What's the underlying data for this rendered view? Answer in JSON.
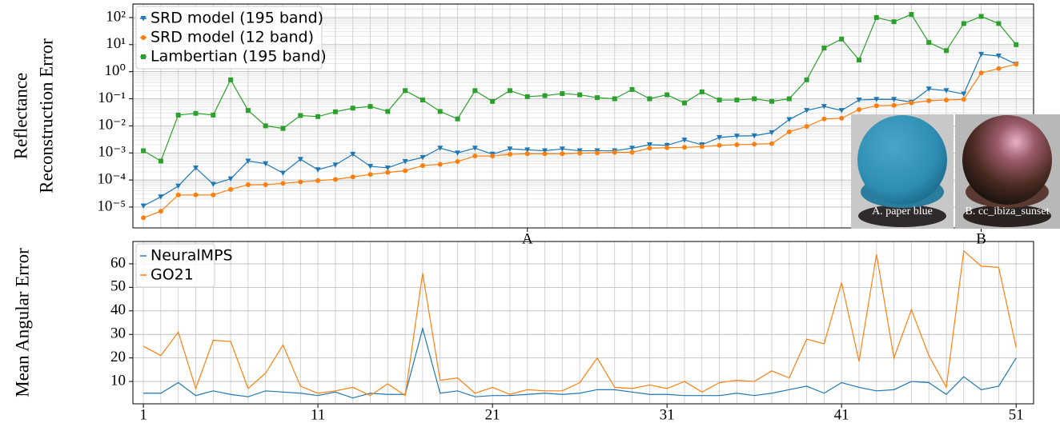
{
  "chart_data": [
    {
      "type": "line",
      "log_y": true,
      "ylabel": [
        "Reflectance",
        "Reconstruction Error"
      ],
      "x": [
        1,
        2,
        3,
        4,
        5,
        6,
        7,
        8,
        9,
        10,
        11,
        12,
        13,
        14,
        15,
        16,
        17,
        18,
        19,
        20,
        21,
        22,
        23,
        24,
        25,
        26,
        27,
        28,
        29,
        30,
        31,
        32,
        33,
        34,
        35,
        36,
        37,
        38,
        39,
        40,
        41,
        42,
        43,
        44,
        45,
        46,
        47,
        48,
        49,
        50,
        51
      ],
      "series": [
        {
          "name": "SRD model (195 band)",
          "color": "#1f77b4",
          "marker": "v",
          "values": [
            1.1e-05,
            2.4e-05,
            6e-05,
            0.00028,
            7e-05,
            0.00011,
            0.0005,
            0.0004,
            0.00018,
            0.00058,
            0.00024,
            0.00036,
            0.00089,
            0.00032,
            0.00028,
            0.00048,
            0.00068,
            0.0015,
            0.001,
            0.0015,
            0.0009,
            0.0014,
            0.0013,
            0.0012,
            0.0014,
            0.0012,
            0.0012,
            0.0012,
            0.0015,
            0.002,
            0.0019,
            0.003,
            0.002,
            0.0037,
            0.0042,
            0.0043,
            0.0056,
            0.017,
            0.037,
            0.052,
            0.037,
            0.09,
            0.095,
            0.095,
            0.075,
            0.23,
            0.2,
            0.15,
            4.4,
            3.8,
            1.9
          ]
        },
        {
          "name": "SRD model (12 band)",
          "color": "#ff7f0e",
          "marker": "o",
          "values": [
            4e-06,
            7e-06,
            2.8e-05,
            2.8e-05,
            2.8e-05,
            4.5e-05,
            6.7e-05,
            6.7e-05,
            7.5e-05,
            8.5e-05,
            9.5e-05,
            0.000105,
            0.00013,
            0.00016,
            0.00019,
            0.00022,
            0.00034,
            0.00038,
            0.00048,
            0.00077,
            0.00077,
            0.00089,
            0.00093,
            0.00093,
            0.00093,
            0.00098,
            0.001,
            0.00105,
            0.00105,
            0.0015,
            0.00155,
            0.0016,
            0.0017,
            0.0019,
            0.002,
            0.0021,
            0.0022,
            0.006,
            0.0095,
            0.018,
            0.019,
            0.04,
            0.055,
            0.057,
            0.07,
            0.085,
            0.09,
            0.095,
            0.9,
            1.3,
            1.9
          ]
        },
        {
          "name": "Lambertian (195 band)",
          "color": "#2ca02c",
          "marker": "s",
          "values": [
            0.0012,
            0.0005,
            0.025,
            0.029,
            0.025,
            0.5,
            0.037,
            0.01,
            0.008,
            0.024,
            0.022,
            0.033,
            0.045,
            0.052,
            0.034,
            0.2,
            0.09,
            0.034,
            0.018,
            0.2,
            0.08,
            0.2,
            0.12,
            0.13,
            0.155,
            0.14,
            0.11,
            0.1,
            0.22,
            0.1,
            0.14,
            0.07,
            0.18,
            0.09,
            0.09,
            0.1,
            0.08,
            0.1,
            0.5,
            7.5,
            16,
            2.7,
            100,
            70,
            130,
            12,
            6,
            60,
            110,
            60,
            10
          ]
        }
      ],
      "xlim": [
        0.4,
        52
      ],
      "xticks": [
        {
          "value": 23,
          "label": "A"
        },
        {
          "value": 49,
          "label": "B"
        }
      ],
      "ylim": [
        1.7e-06,
        316
      ],
      "yticks": [
        {
          "value": 1e-05,
          "label": "10⁻⁵"
        },
        {
          "value": 0.0001,
          "label": "10⁻⁴"
        },
        {
          "value": 0.001,
          "label": "10⁻³"
        },
        {
          "value": 0.01,
          "label": "10⁻²"
        },
        {
          "value": 0.1,
          "label": "10⁻¹"
        },
        {
          "value": 1,
          "label": "10⁰"
        },
        {
          "value": 10,
          "label": "10¹"
        },
        {
          "value": 100,
          "label": "10²"
        }
      ],
      "grid": true,
      "legend": "upper left",
      "annotations": [
        "A. paper blue",
        "B. cc_ibiza_sunset"
      ]
    },
    {
      "type": "line",
      "ylabel": [
        "Mean Angular Error"
      ],
      "x": [
        1,
        2,
        3,
        4,
        5,
        6,
        7,
        8,
        9,
        10,
        11,
        12,
        13,
        14,
        15,
        16,
        17,
        18,
        19,
        20,
        21,
        22,
        23,
        24,
        25,
        26,
        27,
        28,
        29,
        30,
        31,
        32,
        33,
        34,
        35,
        36,
        37,
        38,
        39,
        40,
        41,
        42,
        43,
        44,
        45,
        46,
        47,
        48,
        49,
        50,
        51
      ],
      "series": [
        {
          "name": "NeuralMPS",
          "color": "#1f77b4",
          "values": [
            5,
            5,
            9.5,
            4,
            6,
            4.5,
            3.5,
            6,
            5.5,
            5,
            4,
            5.5,
            3,
            5,
            4.5,
            4.5,
            32.5,
            5,
            6,
            3.5,
            4,
            4,
            4.5,
            5,
            4.5,
            5,
            6.5,
            6.5,
            5.5,
            4.5,
            4.5,
            4,
            4,
            4,
            5,
            4,
            5,
            6.5,
            8,
            5,
            9.5,
            7.5,
            6,
            6.5,
            10,
            9.5,
            4.5,
            12,
            6.5,
            8,
            20
          ]
        },
        {
          "name": "GO21",
          "color": "#ff7f0e",
          "values": [
            25,
            21,
            31,
            7,
            27.5,
            27,
            7,
            13.5,
            25.5,
            8,
            5,
            6,
            7.5,
            4,
            9,
            4,
            56,
            10.5,
            11.5,
            5,
            7.5,
            4.5,
            6.5,
            6,
            6,
            9.5,
            20,
            7.5,
            7,
            8.5,
            7,
            10,
            5.5,
            9.5,
            10.5,
            10,
            14.5,
            11.5,
            28,
            26,
            52,
            18.5,
            64,
            20,
            40.5,
            21,
            7.5,
            65.5,
            59,
            58.5,
            24.5
          ]
        }
      ],
      "xlim": [
        0.4,
        52
      ],
      "xticks": [
        1,
        11,
        21,
        31,
        41,
        51
      ],
      "ylim": [
        0.5,
        69.5
      ],
      "yticks": [
        10,
        20,
        30,
        40,
        50,
        60
      ],
      "grid": true,
      "legend": "upper left"
    }
  ]
}
